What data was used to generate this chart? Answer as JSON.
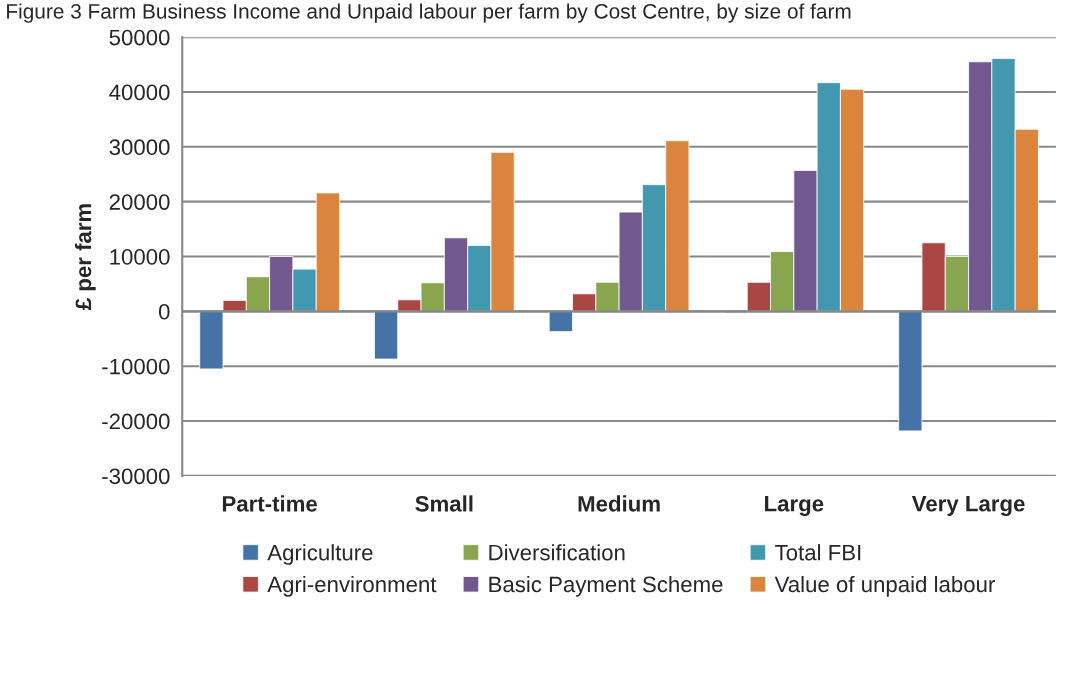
{
  "chart_data": {
    "type": "bar",
    "title": "Figure 3 Farm Business Income and Unpaid labour per farm by Cost Centre, by size of farm",
    "ylabel": "£ per farm",
    "categories": [
      "Part-time",
      "Small",
      "Medium",
      "Large",
      "Very Large"
    ],
    "series": [
      {
        "name": "Agriculture",
        "color": "#4572a7",
        "values": [
          -10500,
          -8700,
          -3700,
          -300,
          -21800
        ]
      },
      {
        "name": "Agri-environment",
        "color": "#aa4643",
        "values": [
          2000,
          2100,
          3200,
          5300,
          12500
        ]
      },
      {
        "name": "Diversification",
        "color": "#89a54e",
        "values": [
          6300,
          5200,
          5300,
          10900,
          10000
        ]
      },
      {
        "name": "Basic Payment Scheme",
        "color": "#71588f",
        "values": [
          10000,
          13400,
          18100,
          25700,
          45500
        ]
      },
      {
        "name": "Total FBI",
        "color": "#4198af",
        "values": [
          7700,
          12000,
          23100,
          41700,
          46100
        ]
      },
      {
        "name": "Value of unpaid labour",
        "color": "#db843d",
        "values": [
          21600,
          29000,
          31100,
          40500,
          33200
        ]
      }
    ],
    "ylim": [
      -30000,
      50000
    ],
    "yticks": [
      -30000,
      -20000,
      -10000,
      0,
      10000,
      20000,
      30000,
      40000,
      50000
    ],
    "grid": "y",
    "legend": "bottom"
  }
}
